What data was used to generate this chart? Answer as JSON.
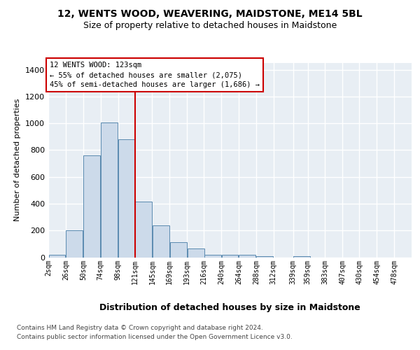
{
  "title": "12, WENTS WOOD, WEAVERING, MAIDSTONE, ME14 5BL",
  "subtitle": "Size of property relative to detached houses in Maidstone",
  "xlabel": "Distribution of detached houses by size in Maidstone",
  "ylabel": "Number of detached properties",
  "bar_color": "#ccdaea",
  "bar_edge_color": "#5a8ab0",
  "background_color": "#e8eef4",
  "grid_color": "#ffffff",
  "footer_line1": "Contains HM Land Registry data © Crown copyright and database right 2024.",
  "footer_line2": "Contains public sector information licensed under the Open Government Licence v3.0.",
  "annotation_line1": "12 WENTS WOOD: 123sqm",
  "annotation_line2": "← 55% of detached houses are smaller (2,075)",
  "annotation_line3": "45% of semi-detached houses are larger (1,686) →",
  "vline_color": "#cc0000",
  "vline_x": 121,
  "bin_starts": [
    2,
    26,
    50,
    74,
    98,
    121,
    145,
    169,
    193,
    216,
    240,
    264,
    288,
    312,
    339,
    359,
    383,
    407,
    430,
    454
  ],
  "bin_width": 24,
  "last_tick": 478,
  "categories": [
    "2sqm",
    "26sqm",
    "50sqm",
    "74sqm",
    "98sqm",
    "121sqm",
    "145sqm",
    "169sqm",
    "193sqm",
    "216sqm",
    "240sqm",
    "264sqm",
    "288sqm",
    "312sqm",
    "339sqm",
    "359sqm",
    "383sqm",
    "407sqm",
    "430sqm",
    "454sqm",
    "478sqm"
  ],
  "values": [
    20,
    200,
    760,
    1005,
    880,
    415,
    240,
    110,
    65,
    20,
    20,
    20,
    10,
    0,
    10,
    0,
    0,
    0,
    0,
    0
  ],
  "ylim": [
    0,
    1450
  ],
  "yticks": [
    0,
    200,
    400,
    600,
    800,
    1000,
    1200,
    1400
  ],
  "title_fontsize": 10,
  "subtitle_fontsize": 9,
  "ylabel_fontsize": 8,
  "xlabel_fontsize": 9
}
